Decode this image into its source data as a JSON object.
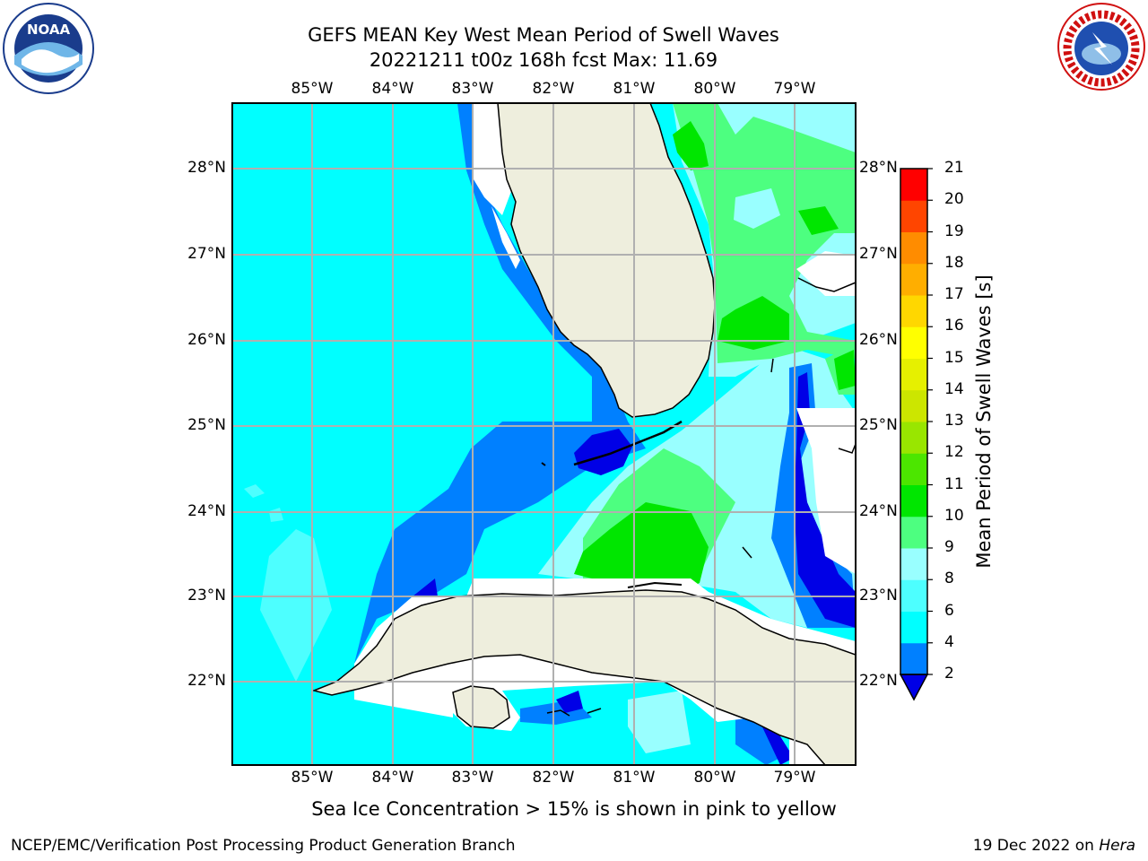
{
  "title_line1": "GEFS MEAN Key West Mean Period of Swell Waves",
  "title_line2": "20221211 t00z 168h fcst   Max: 11.69",
  "lon_labels": [
    "85°W",
    "84°W",
    "83°W",
    "82°W",
    "81°W",
    "80°W",
    "79°W"
  ],
  "lat_labels": [
    "28°N",
    "27°N",
    "26°N",
    "25°N",
    "24°N",
    "23°N",
    "22°N"
  ],
  "colorbar": {
    "label": "Mean Period of Swell Waves [s]",
    "ticks": [
      "2",
      "4",
      "6",
      "8",
      "9",
      "10",
      "11",
      "12",
      "13",
      "14",
      "15",
      "16",
      "17",
      "18",
      "19",
      "20",
      "21"
    ],
    "colors": [
      "#0000e6",
      "#0080ff",
      "#00ffff",
      "#4dffff",
      "#99ffff",
      "#4dff80",
      "#00e600",
      "#4ce600",
      "#99e600",
      "#cce600",
      "#e6f000",
      "#ffff00",
      "#ffd700",
      "#ffae00",
      "#ff8c00",
      "#ff4500",
      "#ff0000"
    ]
  },
  "caption": "Sea Ice Concentration > 15% is shown in pink to yellow",
  "footer_left": "NCEP/EMC/Verification Post Processing Product Generation Branch",
  "footer_right_prefix": "19 Dec 2022 on ",
  "footer_right_host": "Hera",
  "logos": {
    "left": "NOAA",
    "right": "NATIONAL WEATHER SERVICE"
  },
  "map_colors": {
    "land": "#eeeedd",
    "grid": "#b0b0b0",
    "coast": "#000000",
    "mask": "#ffffff"
  }
}
